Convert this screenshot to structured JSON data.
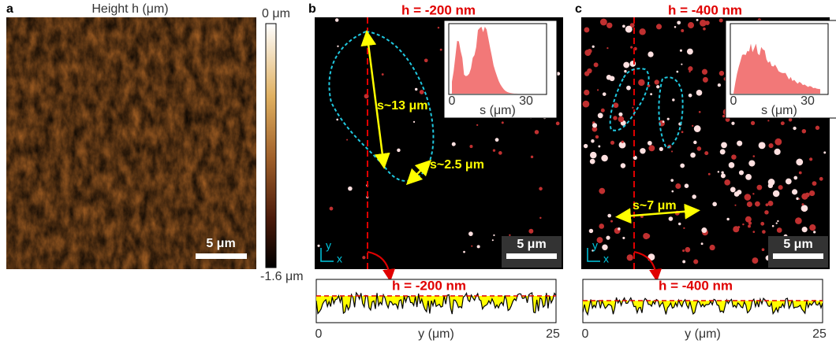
{
  "panel_a": {
    "label": "a",
    "title": "Height h (μm)",
    "colorbar_max": "0 μm",
    "colorbar_min": "-1.6 μm",
    "scale_bar": "5 μm"
  },
  "panel_b": {
    "label": "b",
    "title": "h = -200 nm",
    "annotations": [
      "s~13 μm",
      "s~2.5 μm"
    ],
    "inset": {
      "x_ticks": [
        "0",
        "30"
      ],
      "x_label": "s (μm)"
    },
    "scale_bar": "5 μm",
    "axes": [
      "y",
      "x"
    ],
    "profile": {
      "title": "h = -200 nm",
      "x_ticks": [
        "0",
        "25"
      ],
      "x_label": "y (μm)"
    }
  },
  "panel_c": {
    "label": "c",
    "title": "h = -400 nm",
    "annotations": [
      "s~7 μm"
    ],
    "inset": {
      "x_ticks": [
        "0",
        "30"
      ],
      "x_label": "s (μm)"
    },
    "scale_bar": "5 μm",
    "axes": [
      "y",
      "x"
    ],
    "profile": {
      "title": "h = -400 nm",
      "x_ticks": [
        "0",
        "25"
      ],
      "x_label": "y (μm)"
    }
  }
}
